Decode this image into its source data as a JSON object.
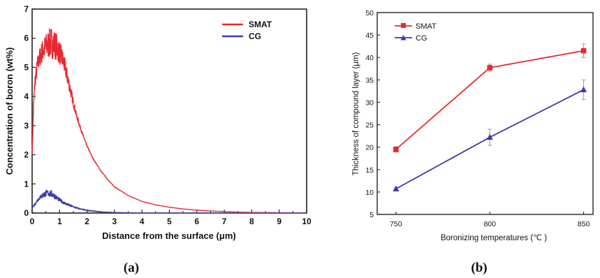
{
  "colors": {
    "smat": "#e8282f",
    "cg": "#3b3ba8",
    "axis": "#222222"
  },
  "chart_data": [
    {
      "panel_label": "(a)",
      "type": "line",
      "title": "",
      "xlabel": "Distance from the surface (μm)",
      "ylabel": "Concentration of boron (wt%)",
      "xlim": [
        0,
        10
      ],
      "ylim": [
        0,
        7
      ],
      "xticks": [
        0,
        1,
        2,
        3,
        4,
        5,
        6,
        7,
        8,
        9,
        10
      ],
      "yticks": [
        0,
        1,
        2,
        3,
        4,
        5,
        6,
        7
      ],
      "grid": false,
      "legend_position": "top-right",
      "series": [
        {
          "name": "SMAT",
          "color": "#e8282f",
          "x": [
            0,
            0.05,
            0.1,
            0.2,
            0.3,
            0.4,
            0.5,
            0.6,
            0.7,
            0.8,
            0.9,
            1.0,
            1.1,
            1.2,
            1.3,
            1.4,
            1.5,
            1.6,
            1.8,
            2.0,
            2.2,
            2.5,
            2.8,
            3.0,
            3.5,
            4.0,
            4.5,
            5.0,
            5.5,
            6.0,
            6.5,
            7.0,
            7.5,
            8.0,
            9.0,
            10.0
          ],
          "y": [
            2.0,
            3.6,
            4.5,
            5.1,
            5.4,
            5.6,
            5.7,
            5.8,
            5.85,
            5.8,
            5.7,
            5.5,
            5.3,
            5.0,
            4.6,
            4.2,
            3.8,
            3.4,
            2.8,
            2.3,
            1.9,
            1.45,
            1.1,
            0.9,
            0.6,
            0.4,
            0.28,
            0.2,
            0.14,
            0.1,
            0.07,
            0.05,
            0.03,
            0.02,
            0.01,
            0.0
          ],
          "noise_amplitude": [
            0,
            0.2,
            0.25,
            0.3,
            0.35,
            0.4,
            0.45,
            0.5,
            0.55,
            0.5,
            0.45,
            0.4,
            0.35,
            0.3,
            0.25,
            0.2,
            0.15,
            0.1,
            0.05,
            0.03,
            0.02,
            0.01,
            0.01,
            0.01,
            0,
            0,
            0,
            0,
            0,
            0,
            0,
            0,
            0,
            0,
            0,
            0
          ]
        },
        {
          "name": "CG",
          "color": "#3b3ba8",
          "x": [
            0,
            0.1,
            0.2,
            0.3,
            0.4,
            0.5,
            0.6,
            0.7,
            0.8,
            0.9,
            1.0,
            1.2,
            1.4,
            1.6,
            1.8,
            2.0,
            2.5,
            3.0,
            3.5,
            4.0,
            5.0,
            6.0,
            7.0,
            8.0,
            10.0
          ],
          "y": [
            0.2,
            0.3,
            0.45,
            0.55,
            0.62,
            0.67,
            0.68,
            0.66,
            0.6,
            0.52,
            0.45,
            0.33,
            0.25,
            0.18,
            0.13,
            0.09,
            0.04,
            0.02,
            0.01,
            0.0,
            0.0,
            0.0,
            0.0,
            0.0,
            0.0
          ],
          "noise_amplitude": [
            0.02,
            0.05,
            0.06,
            0.08,
            0.1,
            0.12,
            0.12,
            0.12,
            0.1,
            0.08,
            0.06,
            0.05,
            0.04,
            0.03,
            0.02,
            0.02,
            0.01,
            0.0,
            0,
            0,
            0,
            0,
            0,
            0,
            0
          ]
        }
      ]
    },
    {
      "panel_label": "(b)",
      "type": "line",
      "title": "",
      "xlabel": "Boronizing temperatures (℃ )",
      "ylabel": "Thickness of compound layer (μm)",
      "xlim": [
        740,
        855
      ],
      "ylim": [
        5,
        50
      ],
      "xticks": [
        750,
        800,
        850
      ],
      "yticks": [
        5,
        10,
        15,
        20,
        25,
        30,
        35,
        40,
        45,
        50
      ],
      "grid": false,
      "legend_position": "top-left",
      "series": [
        {
          "name": "SMAT",
          "color": "#e8282f",
          "marker": "square",
          "x": [
            750,
            800,
            850
          ],
          "y": [
            19.5,
            37.7,
            41.5
          ],
          "error": [
            0.6,
            0.8,
            1.5
          ]
        },
        {
          "name": "CG",
          "color": "#3b3ba8",
          "marker": "triangle",
          "x": [
            750,
            800,
            850
          ],
          "y": [
            10.7,
            22.2,
            32.8
          ],
          "error": [
            0.4,
            1.8,
            2.2
          ]
        }
      ]
    }
  ]
}
